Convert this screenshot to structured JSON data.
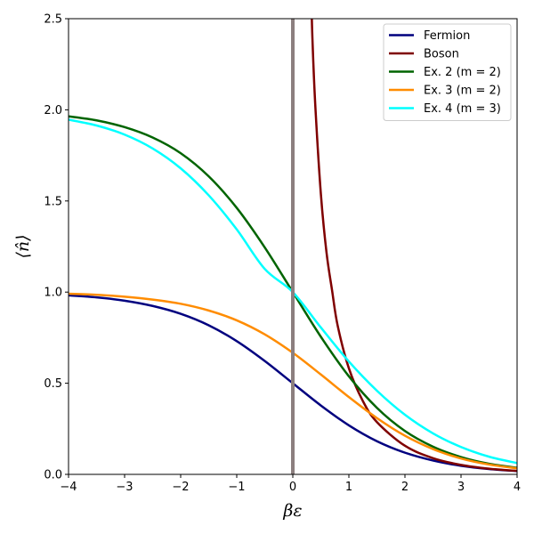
{
  "chart_data": {
    "type": "line",
    "title": "",
    "xlabel": "βε",
    "ylabel": "⟨n̂⟩",
    "xlim": [
      -4,
      4
    ],
    "ylim": [
      0,
      2.5
    ],
    "xticks": [
      "−4",
      "−3",
      "−2",
      "−1",
      "0",
      "1",
      "2",
      "3",
      "4"
    ],
    "xtick_values": [
      -4,
      -3,
      -2,
      -1,
      0,
      1,
      2,
      3,
      4
    ],
    "yticks": [
      "0.0",
      "0.5",
      "1.0",
      "1.5",
      "2.0",
      "2.5"
    ],
    "ytick_values": [
      0,
      0.5,
      1,
      1.5,
      2,
      2.5
    ],
    "grid": false,
    "legend_position": "top-right",
    "vertical_line": {
      "x": 0,
      "color": "#8c7f7f"
    },
    "series": [
      {
        "name": "Fermion",
        "color": "#00007f",
        "x": [
          -4,
          -3.5,
          -3,
          -2.5,
          -2,
          -1.5,
          -1,
          -0.5,
          0,
          0.5,
          1,
          1.5,
          2,
          2.5,
          3,
          3.5,
          4
        ],
        "y": [
          0.982,
          0.971,
          0.953,
          0.924,
          0.881,
          0.818,
          0.731,
          0.622,
          0.5,
          0.378,
          0.269,
          0.182,
          0.119,
          0.076,
          0.047,
          0.029,
          0.018
        ]
      },
      {
        "name": "Boson",
        "color": "#7f0000",
        "x": [
          0.35,
          0.4,
          0.5,
          0.6,
          0.7,
          0.8,
          1,
          1.25,
          1.5,
          2,
          2.5,
          3,
          3.5,
          4
        ],
        "y": [
          2.39,
          2.03,
          1.54,
          1.22,
          1.01,
          0.816,
          0.582,
          0.402,
          0.287,
          0.157,
          0.089,
          0.052,
          0.031,
          0.019
        ]
      },
      {
        "name": "Ex. 2 (m = 2)",
        "color": "#006400",
        "x": [
          -4,
          -3.5,
          -3,
          -2.5,
          -2,
          -1.5,
          -1,
          -0.5,
          0,
          0.5,
          1,
          1.5,
          2,
          2.5,
          3,
          3.5,
          4
        ],
        "y": [
          1.964,
          1.942,
          1.905,
          1.848,
          1.762,
          1.635,
          1.462,
          1.245,
          1.0,
          0.755,
          0.538,
          0.365,
          0.238,
          0.152,
          0.095,
          0.058,
          0.036
        ]
      },
      {
        "name": "Ex. 3 (m = 2)",
        "color": "#ff8c00",
        "x": [
          -4,
          -3.5,
          -3,
          -2.5,
          -2,
          -1.5,
          -1,
          -0.5,
          0,
          0.5,
          1,
          1.5,
          2,
          2.5,
          3,
          3.5,
          4
        ],
        "y": [
          0.991,
          0.985,
          0.975,
          0.959,
          0.936,
          0.899,
          0.845,
          0.768,
          0.667,
          0.548,
          0.424,
          0.309,
          0.212,
          0.139,
          0.087,
          0.054,
          0.033
        ]
      },
      {
        "name": "Ex. 4 (m = 3)",
        "color": "#00ffff",
        "x": [
          -4,
          -3.5,
          -3,
          -2.5,
          -2,
          -1.5,
          -1,
          -0.5,
          0,
          0.5,
          1,
          1.5,
          2,
          2.5,
          3,
          3.5,
          4
        ],
        "y": [
          1.946,
          1.914,
          1.864,
          1.788,
          1.679,
          1.531,
          1.344,
          1.127,
          1.0,
          0.806,
          0.619,
          0.459,
          0.327,
          0.225,
          0.15,
          0.097,
          0.062
        ]
      }
    ]
  }
}
